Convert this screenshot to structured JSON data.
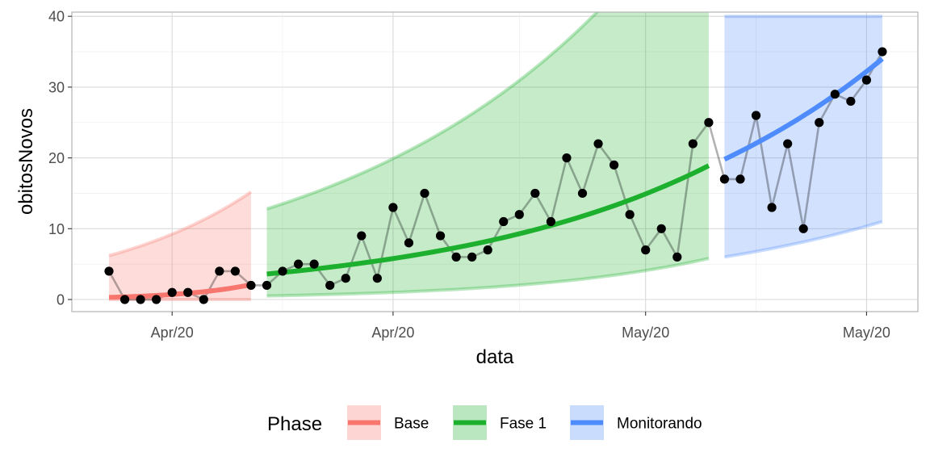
{
  "chart_data": {
    "type": "line",
    "xlabel": "data",
    "ylabel": "obitosNovos",
    "ylim": [
      0,
      40
    ],
    "y_ticks": [
      0,
      10,
      20,
      30,
      40
    ],
    "x_ticks": [
      {
        "day": 5,
        "label": "Apr/20"
      },
      {
        "day": 19,
        "label": "Apr/20"
      },
      {
        "day": 35,
        "label": "May/20"
      },
      {
        "day": 49,
        "label": "May/20"
      }
    ],
    "grid": true,
    "legend_placement": "bottom",
    "legend_title": "Phase",
    "observed": {
      "color": "#000000",
      "points": [
        {
          "day": 1,
          "y": 4
        },
        {
          "day": 2,
          "y": 0
        },
        {
          "day": 3,
          "y": 0
        },
        {
          "day": 4,
          "y": 0
        },
        {
          "day": 5,
          "y": 1
        },
        {
          "day": 6,
          "y": 1
        },
        {
          "day": 7,
          "y": 0
        },
        {
          "day": 8,
          "y": 4
        },
        {
          "day": 9,
          "y": 4
        },
        {
          "day": 10,
          "y": 2
        },
        {
          "day": 11,
          "y": 2
        },
        {
          "day": 12,
          "y": 4
        },
        {
          "day": 13,
          "y": 5
        },
        {
          "day": 14,
          "y": 5
        },
        {
          "day": 15,
          "y": 2
        },
        {
          "day": 16,
          "y": 3
        },
        {
          "day": 17,
          "y": 9
        },
        {
          "day": 18,
          "y": 3
        },
        {
          "day": 19,
          "y": 13
        },
        {
          "day": 20,
          "y": 8
        },
        {
          "day": 21,
          "y": 15
        },
        {
          "day": 22,
          "y": 9
        },
        {
          "day": 23,
          "y": 6
        },
        {
          "day": 24,
          "y": 6
        },
        {
          "day": 25,
          "y": 7
        },
        {
          "day": 26,
          "y": 11
        },
        {
          "day": 27,
          "y": 12
        },
        {
          "day": 28,
          "y": 15
        },
        {
          "day": 29,
          "y": 11
        },
        {
          "day": 30,
          "y": 20
        },
        {
          "day": 31,
          "y": 15
        },
        {
          "day": 32,
          "y": 22
        },
        {
          "day": 33,
          "y": 19
        },
        {
          "day": 34,
          "y": 12
        },
        {
          "day": 35,
          "y": 7
        },
        {
          "day": 36,
          "y": 10
        },
        {
          "day": 37,
          "y": 6
        },
        {
          "day": 38,
          "y": 22
        },
        {
          "day": 39,
          "y": 25
        },
        {
          "day": 40,
          "y": 17
        },
        {
          "day": 41,
          "y": 17
        },
        {
          "day": 42,
          "y": 26
        },
        {
          "day": 43,
          "y": 13
        },
        {
          "day": 44,
          "y": 22
        },
        {
          "day": 45,
          "y": 10
        },
        {
          "day": 46,
          "y": 25
        },
        {
          "day": 47,
          "y": 29
        },
        {
          "day": 48,
          "y": 28
        },
        {
          "day": 49,
          "y": 31
        },
        {
          "day": 50,
          "y": 35
        }
      ]
    },
    "series": [
      {
        "name": "Base",
        "color": "#F8766D",
        "x_start": 1,
        "x_end": 10,
        "fit_start": 0.3,
        "fit_end": 2.1,
        "lower_start": 0,
        "lower_end": 0,
        "upper_start": 6.2,
        "upper_end": 15.2
      },
      {
        "name": "Fase 1",
        "color": "#1DB02E",
        "x_start": 11,
        "x_end": 39,
        "fit_start": 3.6,
        "fit_end": 18.9,
        "lower_start": 0.5,
        "lower_end": 5.8,
        "upper_start": 12.8,
        "upper_end": 60
      },
      {
        "name": "Monitorando",
        "color": "#4E8BFC",
        "x_start": 40,
        "x_end": 50,
        "fit_start": 19.8,
        "fit_end": 34,
        "lower_start": 6,
        "lower_end": 11,
        "upper_start": 40,
        "upper_end": 40
      }
    ]
  }
}
